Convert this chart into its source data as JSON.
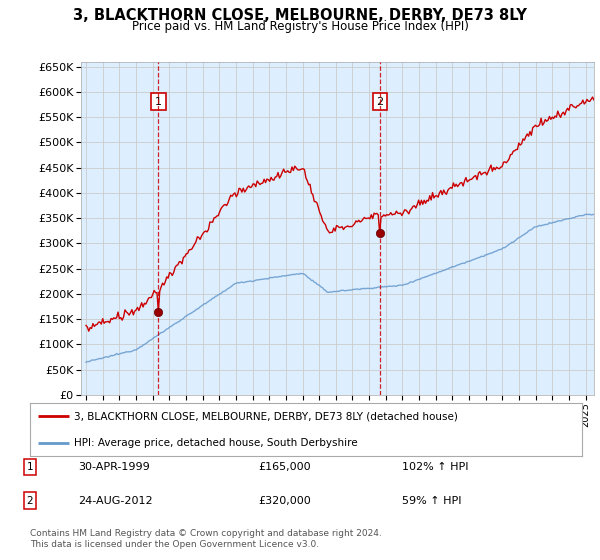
{
  "title": "3, BLACKTHORN CLOSE, MELBOURNE, DERBY, DE73 8LY",
  "subtitle": "Price paid vs. HM Land Registry's House Price Index (HPI)",
  "legend_line1": "3, BLACKTHORN CLOSE, MELBOURNE, DERBY, DE73 8LY (detached house)",
  "legend_line2": "HPI: Average price, detached house, South Derbyshire",
  "sale1_date": "30-APR-1999",
  "sale1_price": 165000,
  "sale1_pct": "102% ↑ HPI",
  "sale2_date": "24-AUG-2012",
  "sale2_price": 320000,
  "sale2_pct": "59% ↑ HPI",
  "footnote": "Contains HM Land Registry data © Crown copyright and database right 2024.\nThis data is licensed under the Open Government Licence v3.0.",
  "hpi_color": "#6699cc",
  "price_color": "#cc0000",
  "marker_color": "#990000",
  "vline_color": "#cc0000",
  "bg_color": "#ddeeff",
  "grid_color": "#ccddee",
  "ylim": [
    0,
    660000
  ],
  "yticks": [
    0,
    50000,
    100000,
    150000,
    200000,
    250000,
    300000,
    350000,
    400000,
    450000,
    500000,
    550000,
    600000,
    650000
  ],
  "sale1_x": 1999.33,
  "sale2_x": 2012.65,
  "box1_label": "1",
  "box2_label": "2"
}
